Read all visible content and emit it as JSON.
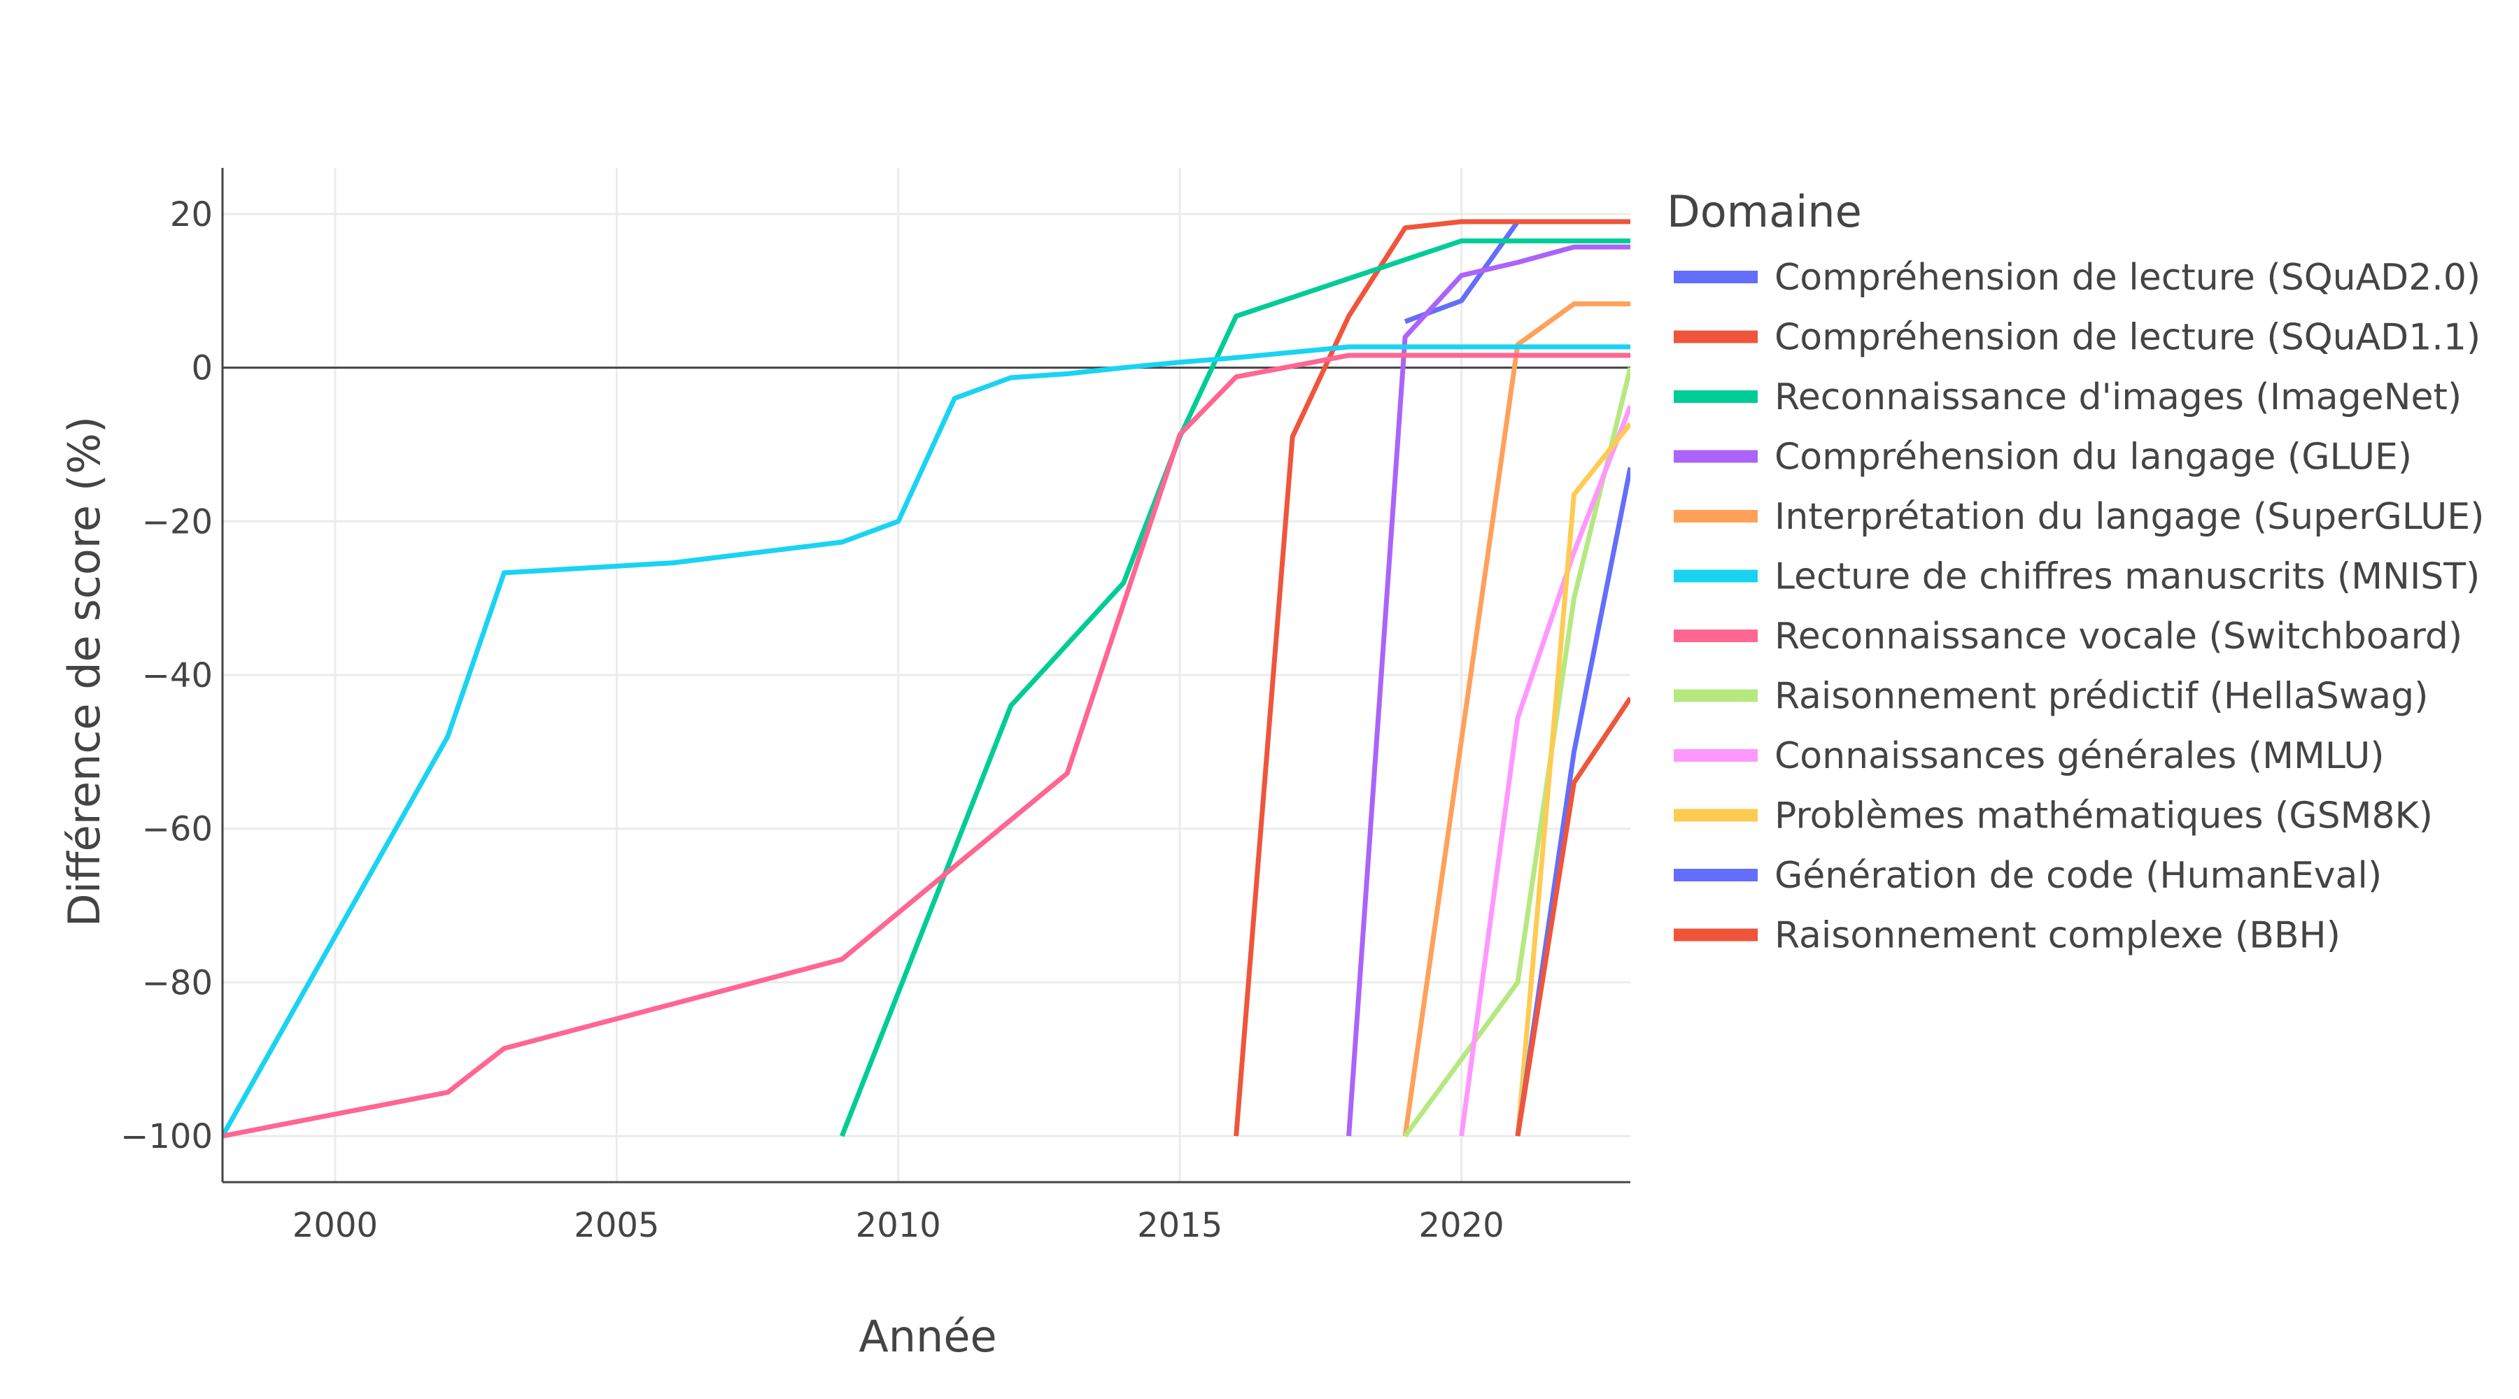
{
  "chart_data": {
    "type": "line",
    "title": "",
    "xlabel": "Année",
    "ylabel": "Différence de score (%)",
    "xlim": [
      1998,
      2023
    ],
    "ylim": [
      -106,
      26
    ],
    "x_ticks": [
      2000,
      2005,
      2010,
      2015,
      2020
    ],
    "y_ticks": [
      -100,
      -80,
      -60,
      -40,
      -20,
      0,
      20
    ],
    "y_tick_labels": [
      "−100",
      "−80",
      "−60",
      "−40",
      "−20",
      "0",
      "20"
    ],
    "grid": true,
    "zero_line": true,
    "legend": {
      "title": "Domaine",
      "placement": "right"
    },
    "series": [
      {
        "name": "Compréhension de lecture (SQuAD2.0)",
        "color": "#636EFA",
        "x": [
          2019,
          2020,
          2021
        ],
        "y": [
          6,
          8.7,
          19
        ]
      },
      {
        "name": "Compréhension de lecture (SQuAD1.1)",
        "color": "#EF553B",
        "x": [
          2016,
          2017,
          2018,
          2019,
          2020,
          2021,
          2022,
          2023
        ],
        "y": [
          -100,
          -9,
          6.7,
          18.2,
          19,
          19,
          19,
          19
        ]
      },
      {
        "name": "Reconnaissance d'images (ImageNet)",
        "color": "#00CC96",
        "x": [
          2009,
          2012,
          2014,
          2015,
          2016,
          2020,
          2021,
          2022,
          2023
        ],
        "y": [
          -100,
          -44,
          -28,
          -9,
          6.7,
          16.5,
          16.5,
          16.5,
          16.5
        ]
      },
      {
        "name": "Compréhension du langage (GLUE)",
        "color": "#AB63FA",
        "x": [
          2018,
          2019,
          2020,
          2021,
          2022,
          2023
        ],
        "y": [
          -100,
          4,
          12,
          13.7,
          15.7,
          15.7
        ]
      },
      {
        "name": "Interprétation du langage (SuperGLUE)",
        "color": "#FFA15A",
        "x": [
          2019,
          2021,
          2022,
          2023
        ],
        "y": [
          -100,
          3,
          8.3,
          8.3
        ]
      },
      {
        "name": "Lecture de chiffres manuscrits (MNIST)",
        "color": "#19D3F3",
        "x": [
          1998,
          2002,
          2003,
          2006,
          2009,
          2010,
          2011,
          2012,
          2013,
          2014,
          2015,
          2016,
          2017,
          2018,
          2019,
          2020,
          2021,
          2022,
          2023
        ],
        "y": [
          -100,
          -48,
          -26.7,
          -25.4,
          -22.7,
          -20,
          -4,
          -1.3,
          -0.8,
          0,
          0.7,
          1.3,
          2,
          2.7,
          2.7,
          2.7,
          2.7,
          2.7,
          2.7
        ]
      },
      {
        "name": "Reconnaissance vocale (Switchboard)",
        "color": "#FF6692",
        "x": [
          1998,
          2002,
          2003,
          2009,
          2013,
          2015,
          2016,
          2018,
          2019,
          2020,
          2021,
          2022,
          2023
        ],
        "y": [
          -100,
          -94.3,
          -88.6,
          -77,
          -52.8,
          -8.7,
          -1.2,
          1.6,
          1.6,
          1.6,
          1.6,
          1.6,
          1.6
        ]
      },
      {
        "name": "Raisonnement prédictif (HellaSwag)",
        "color": "#B6E880",
        "x": [
          2019,
          2021,
          2022,
          2023
        ],
        "y": [
          -100,
          -80,
          -30,
          0
        ]
      },
      {
        "name": "Connaissances générales (MMLU)",
        "color": "#FF97FF",
        "x": [
          2020,
          2021,
          2022,
          2023
        ],
        "y": [
          -100,
          -45.6,
          -24,
          -5
        ]
      },
      {
        "name": "Problèmes mathématiques (GSM8K)",
        "color": "#FECB52",
        "x": [
          2021,
          2022,
          2023
        ],
        "y": [
          -100,
          -16.5,
          -7.3
        ]
      },
      {
        "name": "Génération de code (HumanEval)",
        "color": "#636EFA",
        "x": [
          2021,
          2022,
          2023
        ],
        "y": [
          -100,
          -50,
          -13
        ]
      },
      {
        "name": "Raisonnement complexe (BBH)",
        "color": "#EF553B",
        "x": [
          2021,
          2022,
          2023
        ],
        "y": [
          -100,
          -54,
          -43
        ]
      }
    ]
  }
}
